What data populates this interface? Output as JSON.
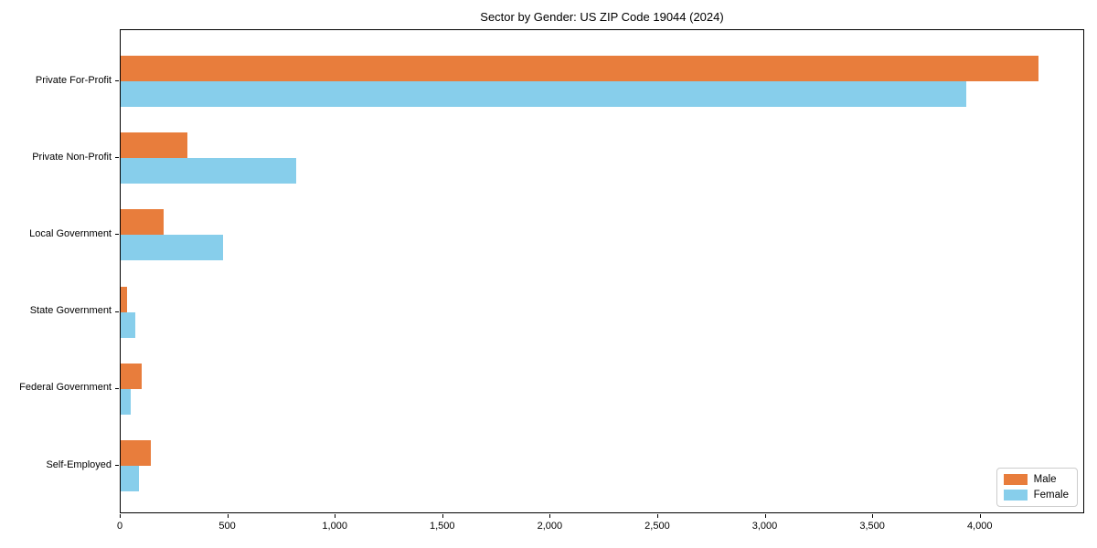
{
  "chart_data": {
    "type": "bar",
    "orientation": "horizontal",
    "title": "Sector by Gender: US ZIP Code 19044 (2024)",
    "categories": [
      "Private For-Profit",
      "Private Non-Profit",
      "Local Government",
      "State Government",
      "Federal Government",
      "Self-Employed"
    ],
    "series": [
      {
        "name": "Male",
        "color": "#e87d3c",
        "values": [
          4270,
          310,
          200,
          30,
          98,
          140
        ]
      },
      {
        "name": "Female",
        "color": "#87ceeb",
        "values": [
          3935,
          815,
          477,
          68,
          47,
          85
        ]
      }
    ],
    "xlim": [
      0,
      4486
    ],
    "xticks": [
      0,
      500,
      1000,
      1500,
      2000,
      2500,
      3000,
      3500,
      4000
    ],
    "xtick_labels": [
      "0",
      "500",
      "1,000",
      "1,500",
      "2,000",
      "2,500",
      "3,000",
      "3,500",
      "4,000"
    ],
    "xlabel": "",
    "ylabel": "",
    "grid": false,
    "legend_position": "lower right",
    "spine_color": "#000000",
    "legend_border_color": "#cccccc"
  }
}
